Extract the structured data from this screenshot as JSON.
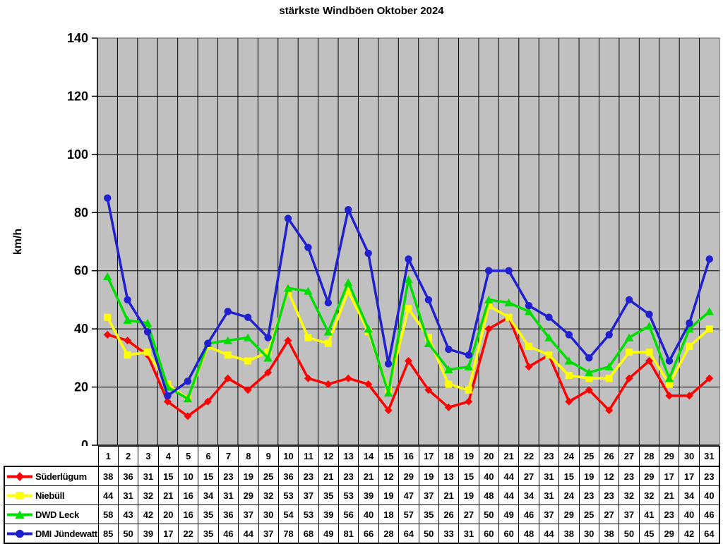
{
  "chart_data": {
    "type": "line",
    "title": "stärkste Windböen Oktober 2024",
    "xlabel": "",
    "ylabel": "km/h",
    "ylim": [
      0,
      140
    ],
    "ytick_step": 20,
    "grid": true,
    "plot_background": "#c0c0c0",
    "plot_border_color": "#848484",
    "gridline_color": "#000000",
    "legend_position": "table-left",
    "x": [
      1,
      2,
      3,
      4,
      5,
      6,
      7,
      8,
      9,
      10,
      11,
      12,
      13,
      14,
      15,
      16,
      17,
      18,
      19,
      20,
      21,
      22,
      23,
      24,
      25,
      26,
      27,
      28,
      29,
      30,
      31
    ],
    "series": [
      {
        "name": "Süderlügum",
        "color": "#ff0000",
        "marker": "diamond",
        "values": [
          38,
          36,
          31,
          15,
          10,
          15,
          23,
          19,
          25,
          36,
          23,
          21,
          23,
          21,
          12,
          29,
          19,
          13,
          15,
          40,
          44,
          27,
          31,
          15,
          19,
          12,
          23,
          29,
          17,
          17,
          23
        ]
      },
      {
        "name": "Niebüll",
        "color": "#ffff00",
        "marker": "square",
        "values": [
          44,
          31,
          32,
          21,
          16,
          34,
          31,
          29,
          32,
          53,
          37,
          35,
          53,
          39,
          19,
          47,
          37,
          21,
          19,
          48,
          44,
          34,
          31,
          24,
          23,
          23,
          32,
          32,
          21,
          34,
          40
        ]
      },
      {
        "name": "DWD Leck",
        "color": "#00dd00",
        "marker": "triangle",
        "values": [
          58,
          43,
          42,
          20,
          16,
          35,
          36,
          37,
          30,
          54,
          53,
          39,
          56,
          40,
          18,
          57,
          35,
          26,
          27,
          50,
          49,
          46,
          37,
          29,
          25,
          27,
          37,
          41,
          23,
          40,
          46
        ]
      },
      {
        "name": "DMI Jündewatt",
        "color": "#2020d0",
        "marker": "circle",
        "values": [
          85,
          50,
          39,
          17,
          22,
          35,
          46,
          44,
          37,
          78,
          68,
          49,
          81,
          66,
          28,
          64,
          50,
          33,
          31,
          60,
          60,
          48,
          44,
          38,
          30,
          38,
          50,
          45,
          29,
          42,
          64
        ]
      }
    ]
  }
}
